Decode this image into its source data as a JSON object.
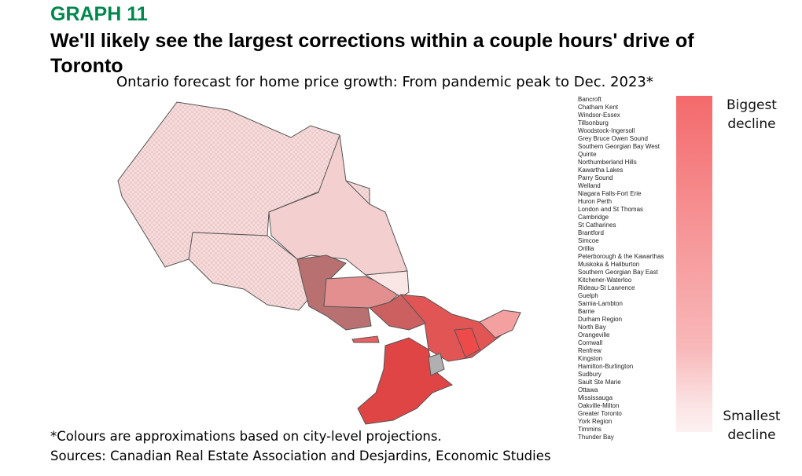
{
  "header": {
    "label": "GRAPH 11",
    "title": "We'll likely see the largest corrections within a couple hours' drive of Toronto",
    "subtitle": "Ontario forecast for home price growth: From pandemic peak to Dec. 2023*"
  },
  "legend": {
    "regions": [
      "Bancroft",
      "Chatham Kent",
      "Windsor-Essex",
      "Tillsonburg",
      "Woodstock-Ingersoll",
      "Grey Bruce Owen Sound",
      "Southern Georgian Bay West",
      "Quinte",
      "Northumberland Hills",
      "Kawartha Lakes",
      "Parry Sound",
      "Welland",
      "Niagara Falls-Fort Erie",
      "Huron Perth",
      "London and St Thomas",
      "Cambridge",
      "St Catharines",
      "Brantford",
      "Simcoe",
      "Orillia",
      "Peterborough & the Kawarthas",
      "Muskoka & Haliburton",
      "Southern Georgian Bay East",
      "Kitchener-Waterloo",
      "Rideau-St Lawrence",
      "Guelph",
      "Sarnia-Lambton",
      "Barrie",
      "Durham Region",
      "North Bay",
      "Orangeville",
      "Cornwall",
      "Renfrew",
      "Kingston",
      "Hamilton-Burlington",
      "Sudbury",
      "Sault Ste Marie",
      "Ottawa",
      "Mississauga",
      "Oakville-Milton",
      "Greater Toronto",
      "York Region",
      "Timmins",
      "Thunder Bay"
    ],
    "top_label": "Biggest decline",
    "bottom_label": "Smallest decline"
  },
  "footer": {
    "note": "*Colours are approximations based on city-level projections.",
    "sources": "Sources: Canadian Real Estate Association and Desjardins, Economic Studies"
  }
}
